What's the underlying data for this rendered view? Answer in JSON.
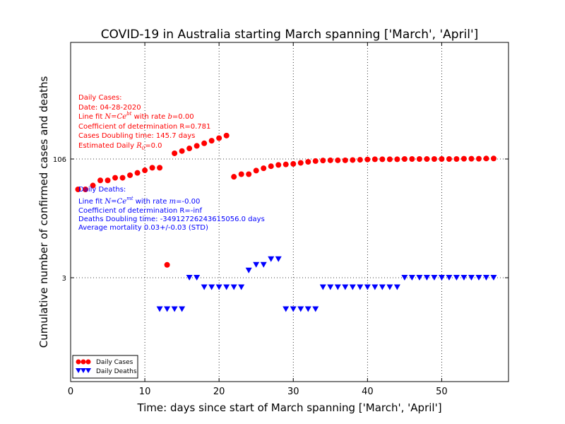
{
  "chart_data": {
    "type": "scatter",
    "title": "COVID-19 in Australia starting March spanning ['March', 'April']",
    "xlabel": "Time: days since start of March spanning ['March', 'April']",
    "ylabel": "Cumulative number of confirmed cases and deaths",
    "xlim": [
      0,
      59
    ],
    "ylim_label": "custom scale with ticks at 3 and 106",
    "xticks": [
      "0",
      "10",
      "20",
      "30",
      "40",
      "50"
    ],
    "yticks": [
      "3",
      "106"
    ],
    "grid": true,
    "legend_position": "lower-left",
    "series": [
      {
        "name": "Daily Cases",
        "color": "#ff0000",
        "marker": "circle",
        "x": [
          1,
          2,
          3,
          4,
          5,
          6,
          7,
          8,
          9,
          10,
          11,
          12,
          13,
          14,
          15,
          16,
          17,
          18,
          19,
          20,
          21,
          22,
          23,
          24,
          25,
          26,
          27,
          28,
          29,
          30,
          31,
          32,
          33,
          34,
          35,
          36,
          37,
          38,
          39,
          40,
          41,
          42,
          43,
          44,
          45,
          46,
          47,
          48,
          49,
          50,
          51,
          52,
          53,
          54,
          55,
          56,
          57
        ],
        "y": [
          -0.55,
          -0.55,
          -0.4,
          -0.2,
          -0.2,
          -0.1,
          -0.1,
          0.0,
          0.09,
          0.19,
          0.29,
          0.29,
          -3.48,
          0.85,
          0.94,
          1.04,
          1.14,
          1.24,
          1.34,
          1.44,
          1.54,
          -0.06,
          0.04,
          0.04,
          0.18,
          0.27,
          0.35,
          0.4,
          0.42,
          0.44,
          0.48,
          0.52,
          0.55,
          0.57,
          0.58,
          0.58,
          0.58,
          0.59,
          0.6,
          0.61,
          0.62,
          0.62,
          0.62,
          0.62,
          0.63,
          0.63,
          0.63,
          0.63,
          0.63,
          0.63,
          0.63,
          0.63,
          0.64,
          0.64,
          0.64,
          0.65,
          0.65
        ]
      },
      {
        "name": "Daily Deaths",
        "color": "#0000ff",
        "marker": "triangle-down",
        "x": [
          12,
          13,
          14,
          15,
          16,
          17,
          18,
          19,
          20,
          21,
          22,
          23,
          24,
          25,
          26,
          27,
          28,
          29,
          30,
          31,
          32,
          33,
          34,
          35,
          36,
          37,
          38,
          39,
          40,
          41,
          42,
          43,
          44,
          45,
          46,
          47,
          48,
          49,
          50,
          51,
          52,
          53,
          54,
          55,
          56,
          57
        ],
        "y": [
          -5.2,
          -5.2,
          -5.2,
          -5.2,
          -3.98,
          -3.98,
          -4.35,
          -4.35,
          -4.35,
          -4.35,
          -4.35,
          -4.35,
          -3.7,
          -3.48,
          -3.48,
          -3.26,
          -3.26,
          -5.2,
          -5.2,
          -5.2,
          -5.2,
          -5.2,
          -4.35,
          -4.35,
          -4.35,
          -4.35,
          -4.35,
          -4.35,
          -4.35,
          -4.35,
          -4.35,
          -4.35,
          -4.35,
          -3.98,
          -3.98,
          -3.98,
          -3.98,
          -3.98,
          -3.98,
          -3.98,
          -3.98,
          -3.98,
          -3.98,
          -3.98,
          -3.98,
          -3.98
        ]
      }
    ]
  },
  "annotations": {
    "cases": {
      "header": "Daily Cases:",
      "date": "Date: 04-28-2020",
      "fit_prefix": "Line fit ",
      "fit_formula": "N=Ce",
      "fit_exp": "bt",
      "fit_rate_prefix": " with rate ",
      "fit_rate_var": "b",
      "fit_rate_value": "=0.00",
      "r": "Coefficient of determination R=0.781",
      "doubling": "Cases Doubling time: 145.7 days",
      "r0_prefix": "Estimated Daily ",
      "r0_var": "R",
      "r0_sub": "0",
      "r0_value": "=0.0"
    },
    "deaths": {
      "header": "Daily Deaths:",
      "fit_prefix": "Line fit ",
      "fit_formula": "N=Ce",
      "fit_exp": "mt",
      "fit_rate_prefix": " with rate ",
      "fit_rate_var": "m",
      "fit_rate_value": "=-0.00",
      "r": "Coefficient of determination R=-inf",
      "doubling": "Deaths Doubling time: -349127262436150​56.0 days",
      "mortality": "Average mortality 0.03+/-0.03 (STD)"
    }
  },
  "legend": {
    "cases_label": "Daily Cases",
    "deaths_label": "Daily Deaths"
  }
}
